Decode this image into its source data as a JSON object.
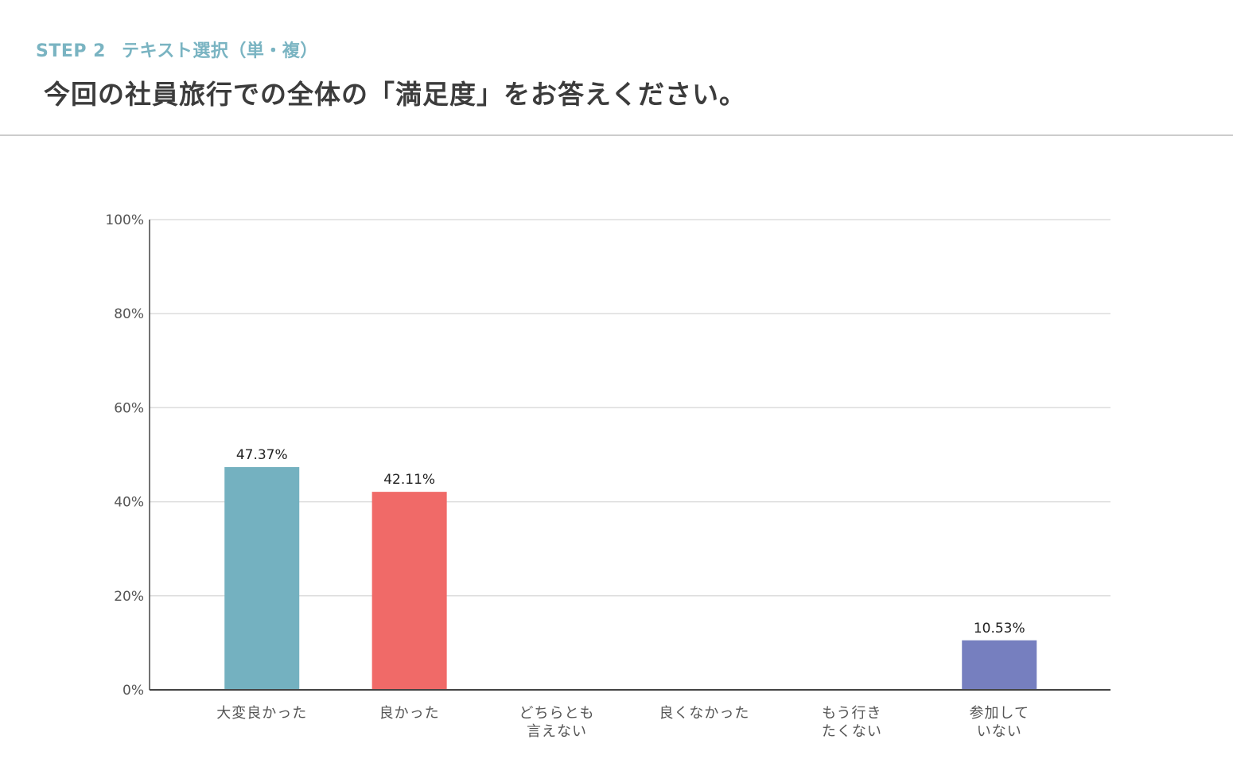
{
  "header": {
    "step": "STEP 2",
    "step_type": "テキスト選択（単・複）",
    "question": "今回の社員旅行での全体の「満足度」をお答えください。"
  },
  "chart_data": {
    "type": "bar",
    "categories": [
      [
        "大変良かった"
      ],
      [
        "良かった"
      ],
      [
        "どちらとも",
        "言えない"
      ],
      [
        "良くなかった"
      ],
      [
        "もう行き",
        "たくない"
      ],
      [
        "参加して",
        "いない"
      ]
    ],
    "values": [
      47.37,
      42.11,
      0,
      0,
      0,
      10.53
    ],
    "data_labels": [
      "47.37%",
      "42.11%",
      "",
      "",
      "",
      "10.53%"
    ],
    "colors": [
      "#74b1c0",
      "#f06a68",
      "#888888",
      "#888888",
      "#888888",
      "#767fbf"
    ],
    "ylim": [
      0,
      100
    ],
    "yticks": [
      0,
      20,
      40,
      60,
      80,
      100
    ],
    "ytick_labels": [
      "0%",
      "20%",
      "40%",
      "60%",
      "80%",
      "100%"
    ],
    "grid": true,
    "title": "",
    "xlabel": "",
    "ylabel": ""
  }
}
